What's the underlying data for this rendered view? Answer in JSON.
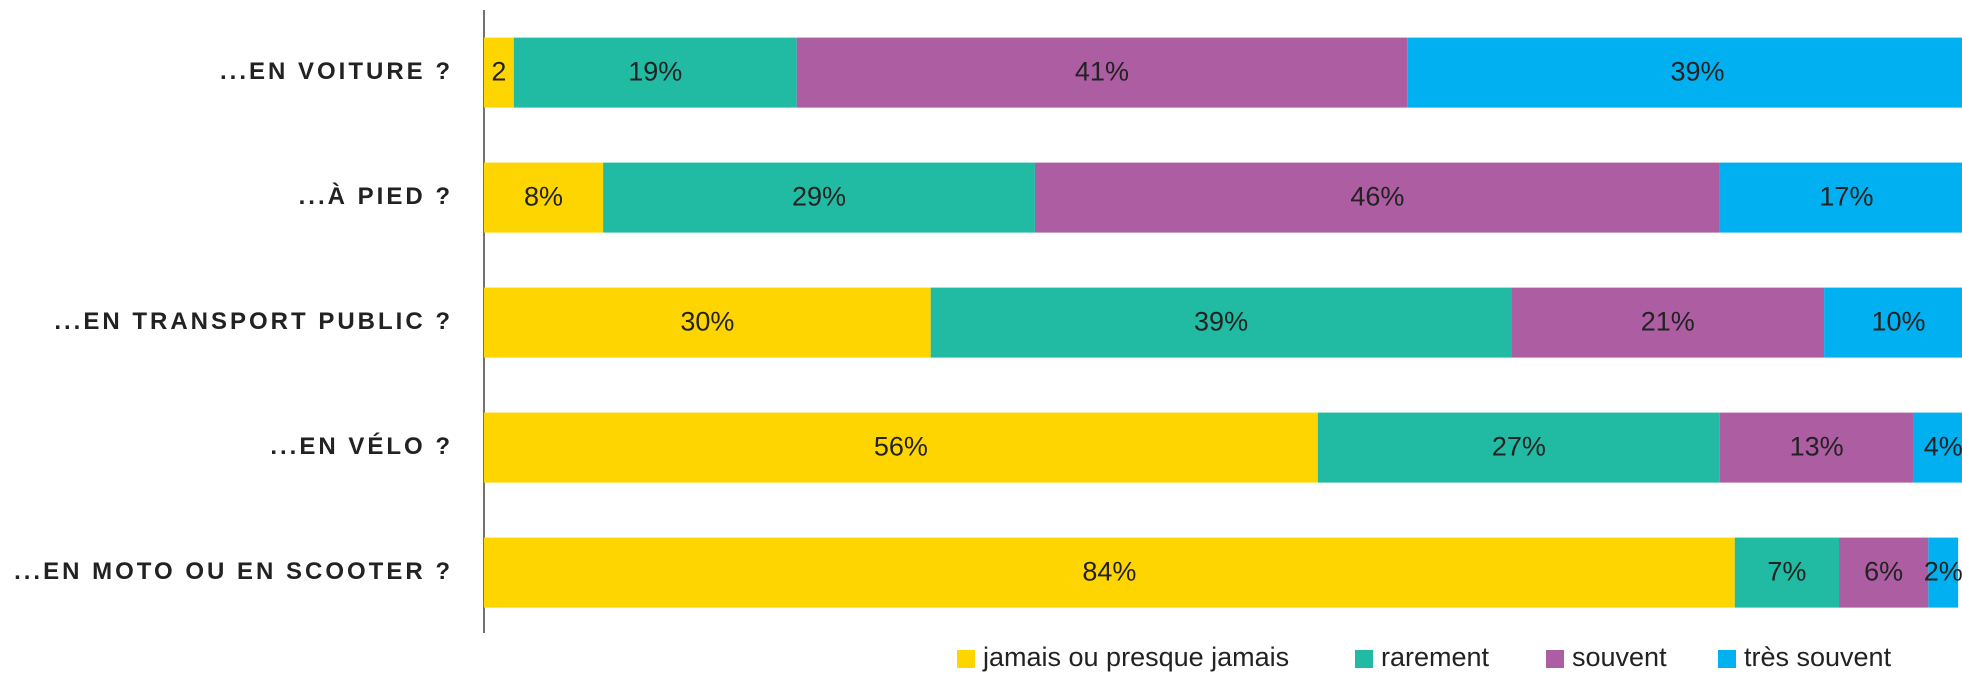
{
  "chart_data": {
    "type": "stacked-bar-horizontal",
    "categories": [
      "...EN VOITURE ?",
      "...À PIED ?",
      "...EN TRANSPORT PUBLIC ?",
      "...EN VÉLO ?",
      "...EN MOTO OU EN SCOOTER ?"
    ],
    "xlim": [
      0,
      100
    ],
    "legend": "bottom",
    "series": [
      {
        "name": "jamais ou presque jamais",
        "color": "#FFD500",
        "values": [
          2,
          8,
          30,
          56,
          84
        ],
        "value_labels": [
          "2",
          "8%",
          "30%",
          "56%",
          "84%"
        ]
      },
      {
        "name": "rarement",
        "color": "#21BAA2",
        "values": [
          19,
          29,
          39,
          27,
          7
        ],
        "value_labels": [
          "19%",
          "29%",
          "39%",
          "27%",
          "7%"
        ]
      },
      {
        "name": "souvent",
        "color": "#AD5DA1",
        "values": [
          41,
          46,
          21,
          13,
          6
        ],
        "value_labels": [
          "41%",
          "46%",
          "21%",
          "13%",
          "6%"
        ]
      },
      {
        "name": "très souvent",
        "color": "#00B0F0",
        "values": [
          39,
          17,
          10,
          4,
          2
        ],
        "value_labels": [
          "39%",
          "17%",
          "10%",
          "4%",
          "2%"
        ]
      }
    ]
  }
}
